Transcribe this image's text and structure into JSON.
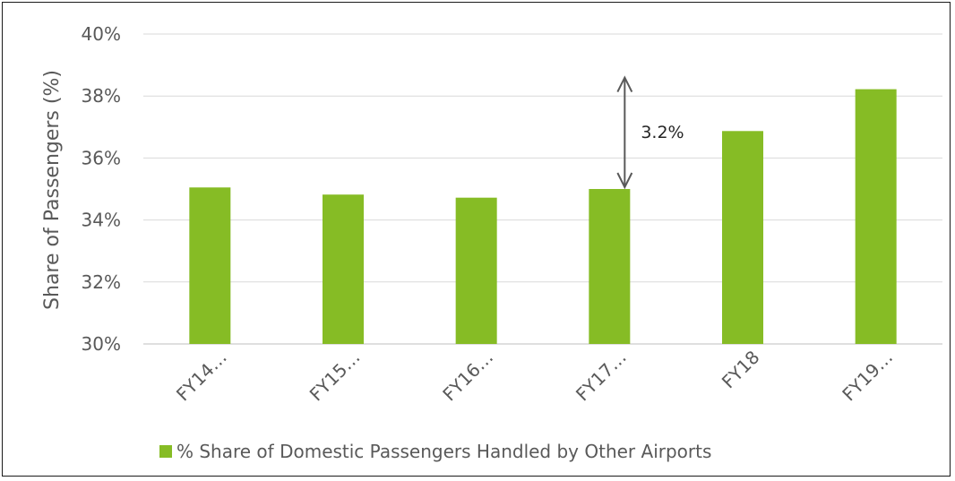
{
  "chart_data": {
    "type": "bar",
    "categories": [
      "FY14…",
      "FY15…",
      "FY16…",
      "FY17…",
      "FY18",
      "FY19…"
    ],
    "series": [
      {
        "name": "% Share of Domestic Passengers Handled by Other Airports",
        "values": [
          35.05,
          34.82,
          34.72,
          35.0,
          36.87,
          38.22
        ]
      }
    ],
    "ylabel": "Share of Passengers (%)",
    "ylim": [
      30,
      40
    ],
    "yticks": [
      "30%",
      "32%",
      "34%",
      "36%",
      "38%",
      "40%"
    ],
    "grid": true,
    "legend_position": "bottom",
    "bar_color": "#86BC25",
    "grid_color": "#d9d9d9",
    "annotation": {
      "text": "3.2%",
      "category": "FY17…",
      "from_value": 35.0,
      "to_value": 38.22
    }
  }
}
